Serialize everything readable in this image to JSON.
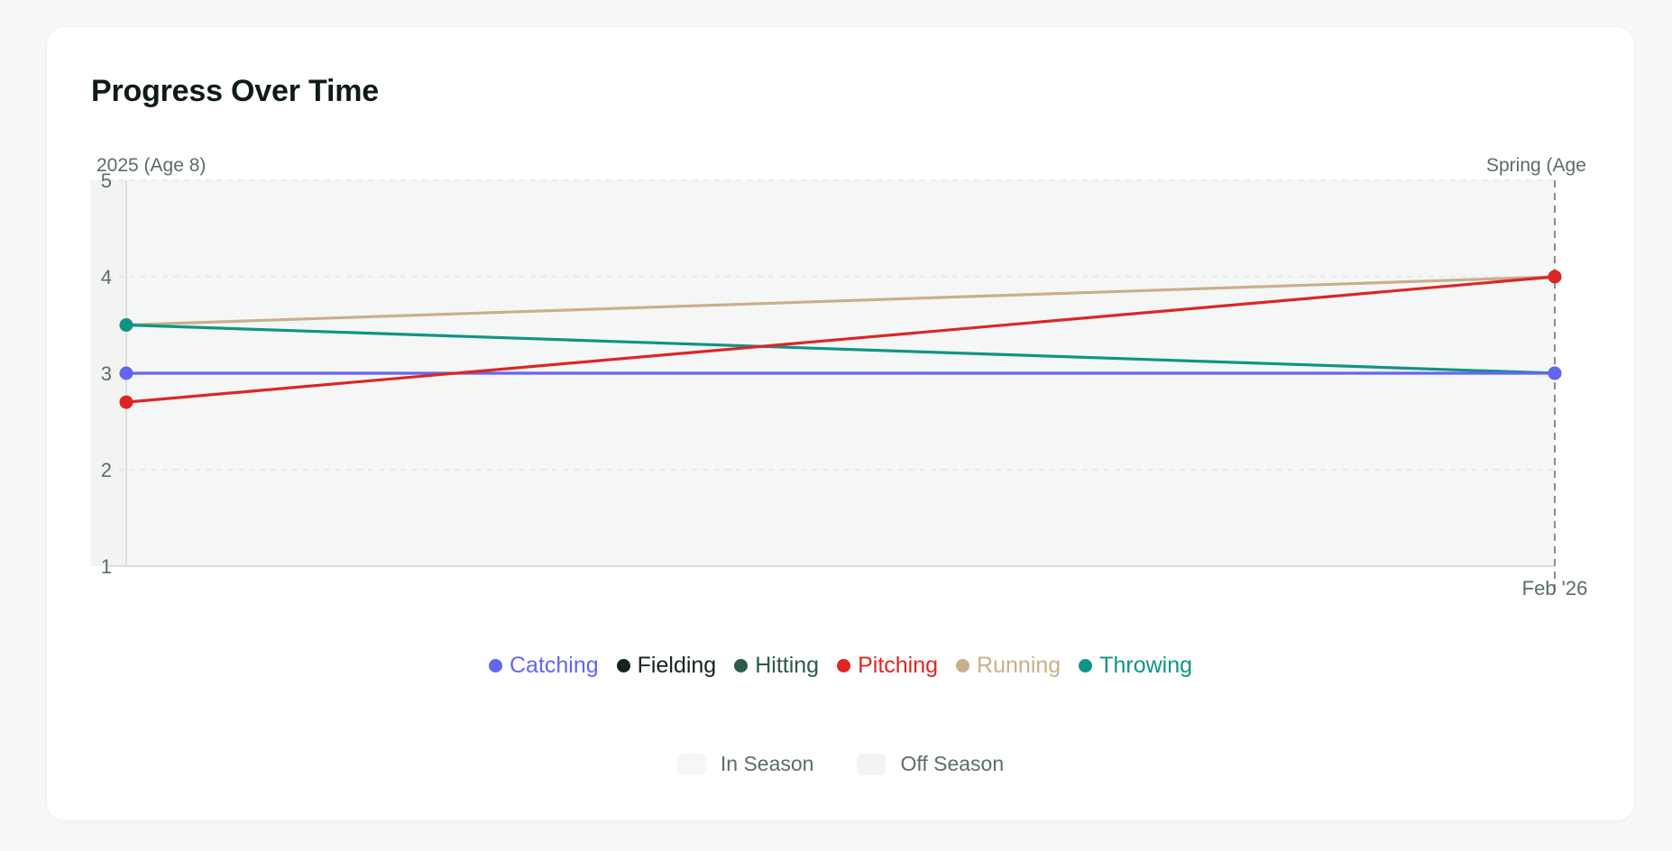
{
  "card": {
    "title": "Progress Over Time"
  },
  "colors": {
    "background": "#f8f8f6",
    "card": "#ffffff",
    "in_season_band": "#f4f7f6",
    "off_season_band": "#f3f4f2",
    "axis_text": "#5c6d69",
    "grid": "#e3e6e4",
    "marker_line": "#8a8f8e"
  },
  "chart_data": {
    "type": "line",
    "title": "Progress Over Time",
    "xlabel": "",
    "ylabel": "",
    "ylim": [
      1,
      5
    ],
    "yticks": [
      1,
      2,
      3,
      4,
      5
    ],
    "grid": true,
    "x": [
      "2025 (Age 8)",
      "Feb '26"
    ],
    "period_labels": [
      {
        "label": "2025 (Age 8)",
        "position": "start"
      },
      {
        "label": "Spring (Age",
        "position": "end"
      }
    ],
    "x_tick_labels": [
      "",
      "Feb '26"
    ],
    "legend_position": "bottom",
    "series": [
      {
        "name": "Catching",
        "color": "#6366f1",
        "values": [
          3,
          3
        ]
      },
      {
        "name": "Fielding",
        "color": "#13231f",
        "values": [
          null,
          null
        ]
      },
      {
        "name": "Hitting",
        "color": "#2d5a4a",
        "values": [
          null,
          null
        ]
      },
      {
        "name": "Pitching",
        "color": "#dc2626",
        "values": [
          2.7,
          4
        ]
      },
      {
        "name": "Running",
        "color": "#c8b08a",
        "values": [
          3.5,
          4
        ]
      },
      {
        "name": "Throwing",
        "color": "#0f9484",
        "values": [
          3.5,
          3
        ]
      }
    ],
    "season_legend": [
      {
        "label": "In Season",
        "color": "#f4f7f6"
      },
      {
        "label": "Off Season",
        "color": "#f3f4f2"
      }
    ]
  }
}
